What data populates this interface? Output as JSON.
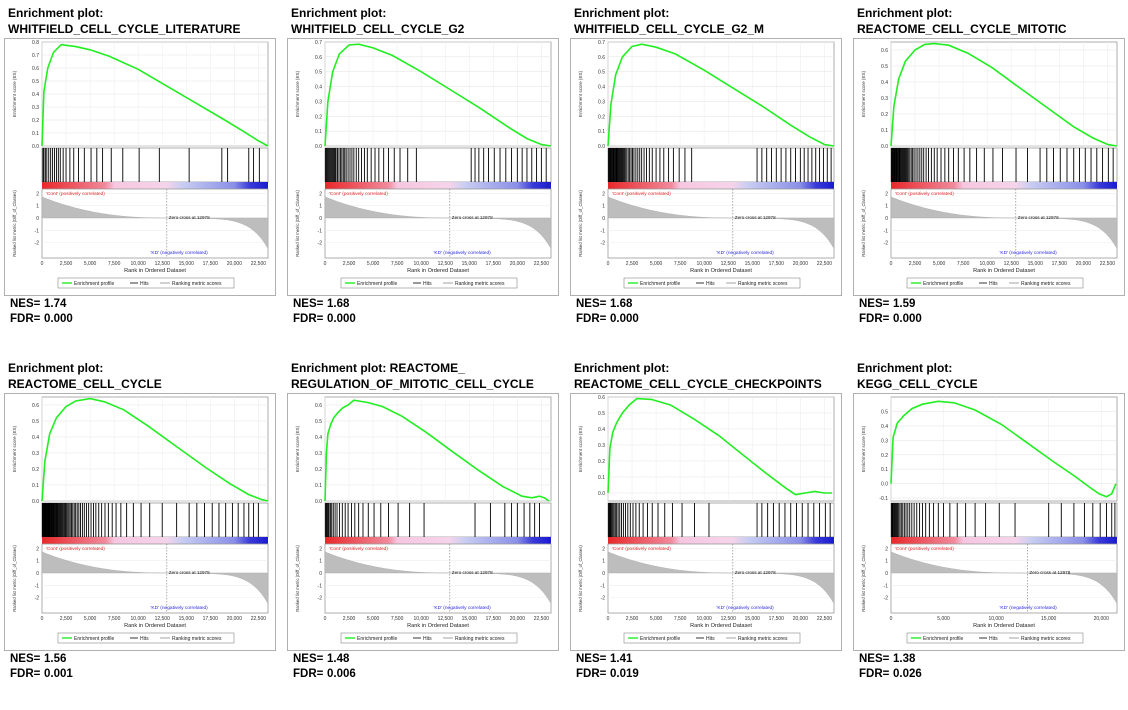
{
  "legend": {
    "enrichment": "Enrichment profile",
    "hits": "Hits",
    "ranking": "Ranking metric scores"
  },
  "labels": {
    "es_axis": "Enrichment score (ES)",
    "metric_axis": "Ranked list metric (Diff_of_Classes)",
    "x_axis": "Rank in Ordered Dataset",
    "pos": "'Cont' (positively correlated)",
    "neg": "'KD' (negatively correlated)",
    "zero_cross": "Zero cross at 12978",
    "nes_label": "NES=",
    "fdr_label": "FDR="
  },
  "colors": {
    "curve": "#22ee22",
    "hits": "#000000",
    "metric": "#bdbdbd",
    "pos": "#e8282a",
    "neg": "#2a2ae0"
  },
  "chart_data": [
    {
      "type": "line",
      "title_line1": "Enrichment plot:",
      "title_line2": "WHITFIELD_CELL_CYCLE_LITERATURE",
      "nes": "1.74",
      "fdr": "0.000",
      "x": [
        0,
        200,
        600,
        1200,
        2000,
        2500,
        3500,
        5000,
        7000,
        10000,
        13000,
        16000,
        19000,
        21000,
        22500,
        23500
      ],
      "y": [
        0.0,
        0.42,
        0.6,
        0.72,
        0.78,
        0.775,
        0.765,
        0.74,
        0.69,
        0.59,
        0.46,
        0.33,
        0.2,
        0.11,
        0.04,
        0.0
      ],
      "ylim": [
        0,
        0.8
      ],
      "yticks": [
        "0.0",
        "0.1",
        "0.2",
        "0.3",
        "0.4",
        "0.5",
        "0.6",
        "0.7",
        "0.8"
      ],
      "xticks": [
        "0",
        "2,500",
        "5,000",
        "7,500",
        "10,000",
        "12,500",
        "15,000",
        "17,500",
        "20,000",
        "22,500"
      ],
      "xlim": [
        0,
        23500
      ],
      "hits": [
        100,
        200,
        350,
        500,
        700,
        900,
        1100,
        1300,
        1500,
        1700,
        1900,
        2200,
        2500,
        2900,
        3300,
        3800,
        4400,
        5100,
        5700,
        6300,
        7200,
        8400,
        10100,
        12200,
        15300,
        18700,
        19300,
        21500,
        22000,
        22600
      ]
    },
    {
      "type": "line",
      "title_line1": "Enrichment plot:",
      "title_line2": "WHITFIELD_CELL_CYCLE_G2",
      "nes": "1.68",
      "fdr": "0.000",
      "x": [
        0,
        300,
        800,
        1500,
        2500,
        3500,
        5000,
        7000,
        10000,
        13000,
        16000,
        19000,
        21000,
        22500,
        23500
      ],
      "y": [
        0.0,
        0.3,
        0.5,
        0.62,
        0.68,
        0.685,
        0.66,
        0.61,
        0.5,
        0.38,
        0.26,
        0.13,
        0.05,
        0.01,
        0.0
      ],
      "ylim": [
        0,
        0.7
      ],
      "yticks": [
        "0.0",
        "0.1",
        "0.2",
        "0.3",
        "0.4",
        "0.5",
        "0.6",
        "0.7"
      ],
      "xticks": [
        "0",
        "2,500",
        "5,000",
        "7,500",
        "10,000",
        "12,500",
        "15,000",
        "17,500",
        "20,000",
        "22,500"
      ],
      "xlim": [
        0,
        23500
      ],
      "hits": [
        50,
        150,
        250,
        350,
        450,
        550,
        650,
        750,
        850,
        950,
        1050,
        1150,
        1300,
        1450,
        1600,
        1750,
        1900,
        2050,
        2200,
        2400,
        2600,
        2800,
        3000,
        3250,
        3500,
        3800,
        4100,
        4400,
        4800,
        5200,
        5600,
        6100,
        6600,
        7200,
        7800,
        8600,
        9500,
        15200,
        15600,
        16000,
        16500,
        17000,
        17600,
        18200,
        18800,
        19400,
        20000,
        20500,
        21000,
        21500,
        22000,
        22500,
        23000
      ]
    },
    {
      "type": "line",
      "title_line1": "Enrichment plot:",
      "title_line2": "WHITFIELD_CELL_CYCLE_G2_M",
      "nes": "1.68",
      "fdr": "0.000",
      "x": [
        0,
        300,
        800,
        1500,
        2500,
        3500,
        5000,
        7000,
        10000,
        13000,
        16000,
        19000,
        21000,
        22500,
        23500
      ],
      "y": [
        0.0,
        0.28,
        0.48,
        0.6,
        0.67,
        0.685,
        0.665,
        0.62,
        0.51,
        0.39,
        0.27,
        0.14,
        0.06,
        0.01,
        0.0
      ],
      "ylim": [
        0,
        0.7
      ],
      "yticks": [
        "0.0",
        "0.1",
        "0.2",
        "0.3",
        "0.4",
        "0.5",
        "0.6",
        "0.7"
      ],
      "xticks": [
        "0",
        "2,500",
        "5,000",
        "7,500",
        "10,000",
        "12,500",
        "15,000",
        "17,500",
        "20,000",
        "22,500"
      ],
      "xlim": [
        0,
        23500
      ],
      "hits": [
        50,
        130,
        210,
        290,
        370,
        450,
        530,
        610,
        690,
        770,
        850,
        930,
        1010,
        1100,
        1200,
        1300,
        1400,
        1500,
        1600,
        1700,
        1800,
        1950,
        2100,
        2250,
        2400,
        2550,
        2700,
        2900,
        3100,
        3300,
        3500,
        3750,
        4000,
        4300,
        4600,
        5000,
        5400,
        5800,
        6300,
        6800,
        7400,
        8000,
        8700,
        15500,
        16000,
        16500,
        17000,
        17500,
        18000,
        18500,
        19000,
        19500,
        20000,
        20400,
        20800,
        21200,
        21600,
        22000,
        22400,
        22800,
        23200
      ]
    },
    {
      "type": "line",
      "title_line1": "Enrichment plot:",
      "title_line2": "REACTOME_CELL_CYCLE_MITOTIC",
      "nes": "1.59",
      "fdr": "0.000",
      "x": [
        0,
        300,
        800,
        1500,
        2500,
        3500,
        4500,
        6000,
        8000,
        10500,
        13000,
        16000,
        19000,
        21000,
        22500,
        23500
      ],
      "y": [
        0.0,
        0.25,
        0.42,
        0.53,
        0.6,
        0.635,
        0.64,
        0.63,
        0.58,
        0.49,
        0.38,
        0.25,
        0.12,
        0.05,
        0.01,
        0.0
      ],
      "ylim": [
        0,
        0.65
      ],
      "yticks": [
        "0.0",
        "0.1",
        "0.2",
        "0.3",
        "0.4",
        "0.5",
        "0.6"
      ],
      "xticks": [
        "0",
        "2,500",
        "5,000",
        "7,500",
        "10,000",
        "12,500",
        "15,000",
        "17,500",
        "20,000",
        "22,500"
      ],
      "xlim": [
        0,
        23500
      ],
      "hits": [
        40,
        110,
        180,
        250,
        320,
        390,
        460,
        530,
        600,
        680,
        760,
        840,
        920,
        1000,
        1100,
        1200,
        1300,
        1400,
        1500,
        1600,
        1700,
        1800,
        1950,
        2100,
        2250,
        2400,
        2600,
        2800,
        3000,
        3200,
        3400,
        3650,
        3900,
        4200,
        4500,
        4800,
        5200,
        5600,
        6000,
        6500,
        7000,
        7600,
        8200,
        8900,
        9700,
        10600,
        11600,
        13000,
        14200,
        15500,
        16200,
        16900,
        17600,
        18300,
        19000,
        19600,
        20200,
        20800,
        21400,
        22000,
        22600,
        23100
      ]
    },
    {
      "type": "line",
      "title_line1": "Enrichment plot:",
      "title_line2": "REACTOME_CELL_CYCLE",
      "nes": "1.56",
      "fdr": "0.001",
      "x": [
        0,
        300,
        800,
        1500,
        2500,
        3500,
        5000,
        6500,
        8500,
        11000,
        14000,
        17000,
        19500,
        21500,
        22800,
        23500
      ],
      "y": [
        0.0,
        0.25,
        0.42,
        0.52,
        0.59,
        0.625,
        0.64,
        0.62,
        0.57,
        0.47,
        0.34,
        0.21,
        0.11,
        0.04,
        0.01,
        0.0
      ],
      "ylim": [
        0,
        0.65
      ],
      "yticks": [
        "0.0",
        "0.1",
        "0.2",
        "0.3",
        "0.4",
        "0.5",
        "0.6"
      ],
      "xticks": [
        "0",
        "2,500",
        "5,000",
        "7,500",
        "10,000",
        "12,500",
        "15,000",
        "17,500",
        "20,000",
        "22,500"
      ],
      "xlim": [
        0,
        23500
      ],
      "hits": [
        40,
        100,
        160,
        220,
        280,
        340,
        400,
        460,
        520,
        580,
        640,
        700,
        760,
        820,
        880,
        950,
        1020,
        1090,
        1160,
        1240,
        1320,
        1400,
        1480,
        1560,
        1650,
        1740,
        1830,
        1920,
        2020,
        2120,
        2220,
        2330,
        2440,
        2560,
        2680,
        2800,
        2930,
        3060,
        3200,
        3350,
        3500,
        3660,
        3830,
        4000,
        4200,
        4400,
        4620,
        4850,
        5100,
        5350,
        5600,
        5900,
        6200,
        6550,
        6900,
        7300,
        7700,
        8200,
        8800,
        9500,
        10300,
        11200,
        12500,
        14000,
        15300,
        16100,
        16900,
        17700,
        18400,
        19100,
        19800,
        20400,
        21000,
        21500,
        22000,
        22500
      ]
    },
    {
      "type": "line",
      "title_line1": "Enrichment plot: REACTOME_",
      "title_line2": "REGULATION_OF_MITOTIC_CELL_CYCLE",
      "nes": "1.48",
      "fdr": "0.006",
      "x": [
        0,
        150,
        300,
        600,
        900,
        1300,
        1800,
        2400,
        3000,
        3500,
        4500,
        6000,
        8000,
        10500,
        13000,
        16000,
        18500,
        20500,
        21500,
        22300,
        22800,
        23300
      ],
      "y": [
        0.0,
        0.3,
        0.42,
        0.48,
        0.52,
        0.55,
        0.58,
        0.6,
        0.63,
        0.625,
        0.615,
        0.59,
        0.53,
        0.43,
        0.32,
        0.19,
        0.09,
        0.03,
        0.02,
        0.03,
        0.02,
        0.0
      ],
      "ylim": [
        0,
        0.65
      ],
      "yticks": [
        "0.0",
        "0.1",
        "0.2",
        "0.3",
        "0.4",
        "0.5",
        "0.6"
      ],
      "xticks": [
        "0",
        "2,500",
        "5,000",
        "7,500",
        "10,000",
        "12,500",
        "15,000",
        "17,500",
        "20,000",
        "22,500"
      ],
      "xlim": [
        0,
        23500
      ],
      "hits": [
        60,
        140,
        220,
        320,
        420,
        560,
        700,
        860,
        1050,
        1250,
        1500,
        1800,
        2100,
        2400,
        2750,
        3100,
        3500,
        3950,
        4500,
        5100,
        5800,
        6600,
        7600,
        8800,
        10300,
        15600,
        17200,
        18700,
        19400,
        20000,
        20700,
        21300,
        21800,
        22300
      ]
    },
    {
      "type": "line",
      "title_line1": "Enrichment plot:",
      "title_line2": "REACTOME_CELL_CYCLE_CHECKPOINTS",
      "nes": "1.41",
      "fdr": "0.019",
      "x": [
        0,
        200,
        500,
        900,
        1500,
        2200,
        3000,
        4500,
        6500,
        9000,
        11500,
        14000,
        16500,
        18500,
        19500,
        20500,
        21500,
        22500,
        23300
      ],
      "y": [
        0.0,
        0.28,
        0.38,
        0.44,
        0.5,
        0.55,
        0.59,
        0.585,
        0.55,
        0.46,
        0.36,
        0.24,
        0.12,
        0.03,
        -0.01,
        0.0,
        0.01,
        0.0,
        0.0
      ],
      "ylim": [
        -0.05,
        0.6
      ],
      "yticks": [
        "0.0",
        "0.1",
        "0.2",
        "0.3",
        "0.4",
        "0.5",
        "0.6"
      ],
      "xticks": [
        "0",
        "2,500",
        "5,000",
        "7,500",
        "10,000",
        "12,500",
        "15,000",
        "17,500",
        "20,000",
        "22,500"
      ],
      "xlim": [
        0,
        23500
      ],
      "hits": [
        50,
        130,
        210,
        300,
        400,
        510,
        630,
        760,
        900,
        1050,
        1220,
        1400,
        1600,
        1820,
        2060,
        2320,
        2600,
        2900,
        3250,
        3650,
        4100,
        4600,
        5200,
        5900,
        6700,
        7700,
        9000,
        10500,
        15500,
        16000,
        16600,
        17200,
        17800,
        18400,
        19000,
        19600,
        20200,
        20800,
        21400,
        22000,
        22600,
        23100
      ]
    },
    {
      "type": "line",
      "title_line1": "Enrichment plot:",
      "title_line2": "KEGG_CELL_CYCLE",
      "nes": "1.38",
      "fdr": "0.026",
      "x": [
        0,
        200,
        600,
        1200,
        2000,
        3000,
        4500,
        6000,
        8000,
        10500,
        13000,
        15500,
        17500,
        19000,
        19800,
        20500,
        21000,
        21400
      ],
      "y": [
        0.0,
        0.32,
        0.42,
        0.47,
        0.52,
        0.55,
        0.57,
        0.56,
        0.51,
        0.41,
        0.28,
        0.15,
        0.05,
        -0.03,
        -0.07,
        -0.09,
        -0.07,
        0.0
      ],
      "ylim": [
        -0.12,
        0.6
      ],
      "yticks": [
        "-0.1",
        "0.0",
        "0.1",
        "0.2",
        "0.3",
        "0.4",
        "0.5"
      ],
      "xticks": [
        "0",
        "5,000",
        "10,000",
        "15,000",
        "20,000"
      ],
      "xlim": [
        0,
        21500
      ],
      "hits": [
        40,
        110,
        180,
        260,
        340,
        430,
        520,
        620,
        730,
        850,
        980,
        1120,
        1270,
        1430,
        1600,
        1780,
        1980,
        2200,
        2450,
        2720,
        3000,
        3300,
        3650,
        4050,
        4500,
        5000,
        5600,
        6300,
        7100,
        8000,
        9000,
        10300,
        11800,
        15000,
        16200,
        17400,
        18400,
        19200,
        19900,
        20500,
        21000,
        21300
      ]
    }
  ]
}
